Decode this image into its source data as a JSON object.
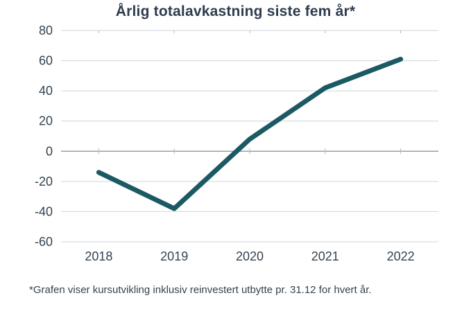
{
  "title": "Årlig totalavkastning siste fem år*",
  "footnote": "*Grafen viser kursutvikling inklusiv reinvestert utbytte pr. 31.12 for hvert år.",
  "colors": {
    "line": "#1b5a63",
    "title_text": "#2e3c4e",
    "grid": "#ccd6dd",
    "zero_line": "#8b99a4",
    "tick_text": "#33424f"
  },
  "chart_data": {
    "type": "line",
    "title": "Årlig totalavkastning siste fem år*",
    "categories": [
      "2018",
      "2019",
      "2020",
      "2021",
      "2022"
    ],
    "values": [
      -14,
      -38,
      8,
      42,
      61
    ],
    "series": [
      {
        "name": "Årlig totalavkastning",
        "values": [
          -14,
          -38,
          8,
          42,
          61
        ]
      }
    ],
    "xlabel": "",
    "ylabel": "",
    "ylim": [
      -60,
      80
    ],
    "yticks": [
      -60,
      -40,
      -20,
      0,
      20,
      40,
      60,
      80
    ],
    "grid": true,
    "legend_position": "none",
    "annotation": "*Grafen viser kursutvikling inklusiv reinvestert utbytte pr. 31.12 for hvert år."
  }
}
